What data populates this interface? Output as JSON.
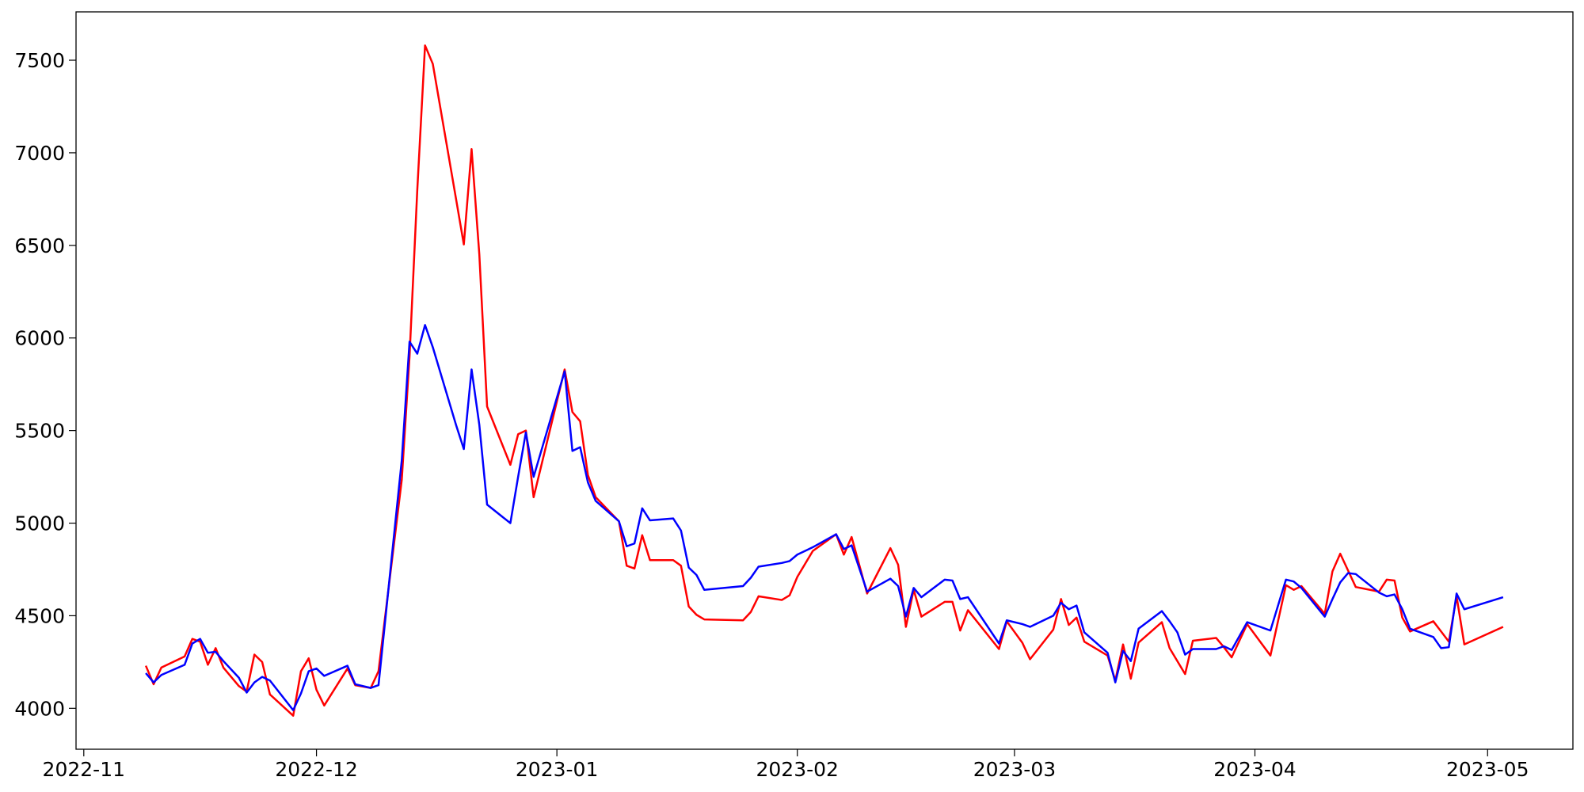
{
  "chart_data": {
    "type": "line",
    "x": [
      "2022-11-09",
      "2022-11-10",
      "2022-11-11",
      "2022-11-14",
      "2022-11-15",
      "2022-11-16",
      "2022-11-17",
      "2022-11-18",
      "2022-11-19",
      "2022-11-21",
      "2022-11-22",
      "2022-11-23",
      "2022-11-24",
      "2022-11-25",
      "2022-11-28",
      "2022-11-29",
      "2022-11-30",
      "2022-12-01",
      "2022-12-02",
      "2022-12-05",
      "2022-12-06",
      "2022-12-08",
      "2022-12-09",
      "2022-12-12",
      "2022-12-13",
      "2022-12-14",
      "2022-12-15",
      "2022-12-16",
      "2022-12-19",
      "2022-12-20",
      "2022-12-21",
      "2022-12-22",
      "2022-12-23",
      "2022-12-26",
      "2022-12-27",
      "2022-12-28",
      "2022-12-29",
      "2023-01-02",
      "2023-01-03",
      "2023-01-04",
      "2023-01-05",
      "2023-01-06",
      "2023-01-09",
      "2023-01-10",
      "2023-01-11",
      "2023-01-12",
      "2023-01-13",
      "2023-01-16",
      "2023-01-17",
      "2023-01-18",
      "2023-01-19",
      "2023-01-20",
      "2023-01-25",
      "2023-01-26",
      "2023-01-27",
      "2023-01-30",
      "2023-01-31",
      "2023-02-01",
      "2023-02-03",
      "2023-02-06",
      "2023-02-07",
      "2023-02-08",
      "2023-02-10",
      "2023-02-13",
      "2023-02-14",
      "2023-02-15",
      "2023-02-16",
      "2023-02-17",
      "2023-02-20",
      "2023-02-21",
      "2023-02-22",
      "2023-02-23",
      "2023-02-27",
      "2023-02-28",
      "2023-03-02",
      "2023-03-03",
      "2023-03-06",
      "2023-03-07",
      "2023-03-08",
      "2023-03-09",
      "2023-03-10",
      "2023-03-13",
      "2023-03-14",
      "2023-03-15",
      "2023-03-16",
      "2023-03-17",
      "2023-03-20",
      "2023-03-21",
      "2023-03-22",
      "2023-03-23",
      "2023-03-24",
      "2023-03-27",
      "2023-03-28",
      "2023-03-29",
      "2023-03-31",
      "2023-04-03",
      "2023-04-05",
      "2023-04-06",
      "2023-04-07",
      "2023-04-10",
      "2023-04-11",
      "2023-04-12",
      "2023-04-13",
      "2023-04-14",
      "2023-04-17",
      "2023-04-18",
      "2023-04-19",
      "2023-04-20",
      "2023-04-21",
      "2023-04-24",
      "2023-04-25",
      "2023-04-26",
      "2023-04-27",
      "2023-04-28",
      "2023-05-03"
    ],
    "series": [
      {
        "color": "#ff0000",
        "values": [
          4230,
          4130,
          4220,
          4280,
          4375,
          4360,
          4235,
          4325,
          4220,
          4120,
          4090,
          4290,
          4250,
          4075,
          3960,
          4200,
          4270,
          4100,
          4015,
          4215,
          4125,
          4110,
          4200,
          5235,
          5900,
          6800,
          7580,
          7480,
          6750,
          6505,
          7020,
          6450,
          5630,
          5315,
          5480,
          5500,
          5140,
          5830,
          5600,
          5550,
          5260,
          5140,
          5010,
          4770,
          4755,
          4935,
          4800,
          4800,
          4770,
          4550,
          4505,
          4480,
          4475,
          4520,
          4605,
          4585,
          4610,
          4710,
          4850,
          4940,
          4830,
          4925,
          4620,
          4865,
          4775,
          4440,
          4640,
          4495,
          4575,
          4575,
          4420,
          4530,
          4320,
          4470,
          4355,
          4265,
          4425,
          4590,
          4450,
          4490,
          4360,
          4285,
          4150,
          4345,
          4160,
          4355,
          4465,
          4325,
          4255,
          4185,
          4365,
          4380,
          4330,
          4275,
          4455,
          4285,
          4665,
          4640,
          4660,
          4510,
          4740,
          4835,
          4745,
          4655,
          4630,
          4695,
          4690,
          4490,
          4415,
          4470,
          4415,
          4360,
          4605,
          4345,
          4440
        ]
      },
      {
        "color": "#0000ff",
        "values": [
          4190,
          4140,
          4180,
          4235,
          4350,
          4375,
          4300,
          4305,
          4255,
          4165,
          4085,
          4140,
          4170,
          4150,
          3990,
          4080,
          4200,
          4215,
          4175,
          4230,
          4130,
          4110,
          4125,
          5340,
          5980,
          5915,
          6070,
          5950,
          5530,
          5400,
          5830,
          5530,
          5100,
          5000,
          5250,
          5490,
          5250,
          5820,
          5390,
          5410,
          5220,
          5120,
          5010,
          4875,
          4890,
          5080,
          5015,
          5025,
          4960,
          4760,
          4720,
          4640,
          4660,
          4705,
          4765,
          4785,
          4795,
          4830,
          4870,
          4940,
          4860,
          4880,
          4630,
          4700,
          4660,
          4495,
          4650,
          4600,
          4695,
          4690,
          4590,
          4600,
          4350,
          4475,
          4455,
          4440,
          4500,
          4570,
          4535,
          4555,
          4410,
          4300,
          4140,
          4310,
          4255,
          4430,
          4525,
          4470,
          4410,
          4290,
          4320,
          4320,
          4335,
          4315,
          4465,
          4420,
          4695,
          4685,
          4650,
          4495,
          4590,
          4680,
          4730,
          4725,
          4625,
          4605,
          4615,
          4535,
          4430,
          4385,
          4325,
          4330,
          4620,
          4535,
          4600
        ]
      }
    ],
    "xlim": [
      "2022-10-31",
      "2023-05-12"
    ],
    "xticks": [
      {
        "value": "2022-11-01",
        "label": "2022-11"
      },
      {
        "value": "2022-12-01",
        "label": "2022-12"
      },
      {
        "value": "2023-01-01",
        "label": "2023-01"
      },
      {
        "value": "2023-02-01",
        "label": "2023-02"
      },
      {
        "value": "2023-03-01",
        "label": "2023-03"
      },
      {
        "value": "2023-04-01",
        "label": "2023-04"
      },
      {
        "value": "2023-05-01",
        "label": "2023-05"
      }
    ],
    "ylim": [
      3779,
      7761
    ],
    "yticks": [
      4000,
      4500,
      5000,
      5500,
      6000,
      6500,
      7000,
      7500
    ],
    "grid": false
  }
}
